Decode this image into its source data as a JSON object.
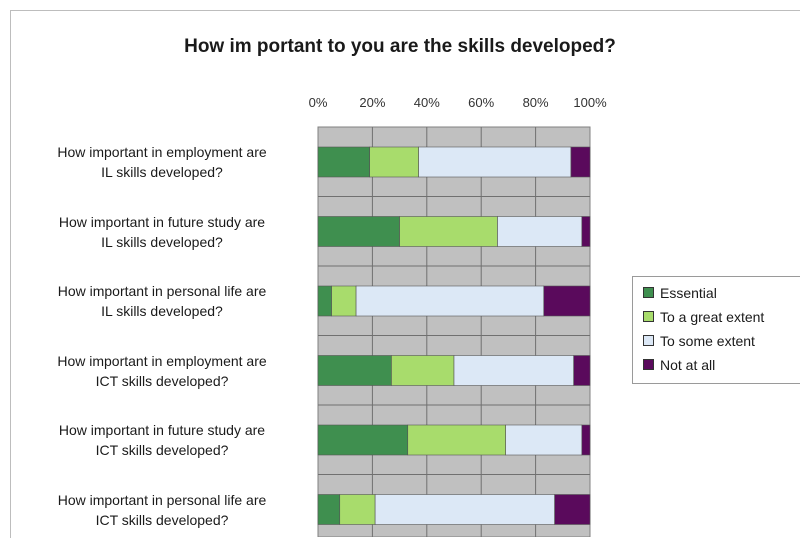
{
  "chart_data": {
    "type": "bar",
    "orientation": "horizontal",
    "stacked": true,
    "title": "How im portant to you are the skills developed?",
    "xlabel": "",
    "ylabel": "",
    "xlim": [
      0,
      100
    ],
    "x_ticks": [
      "0%",
      "20%",
      "40%",
      "60%",
      "80%",
      "100%"
    ],
    "grid": true,
    "plot_background": "#c0c0c0",
    "legend_position": "right",
    "categories": [
      "How important in employment are IL skills developed?",
      "How important in future study are IL skills developed?",
      "How important in personal life are IL skills developed?",
      "How important in employment are ICT skills developed?",
      "How important in future study are ICT skills developed?",
      "How important in personal life are ICT skills developed?"
    ],
    "category_lines": [
      [
        "How important in employment are",
        "IL skills developed?"
      ],
      [
        "How important in future study are",
        "IL skills developed?"
      ],
      [
        "How important in personal life are",
        "IL skills developed?"
      ],
      [
        "How important in employment are",
        "ICT skills developed?"
      ],
      [
        "How important in future study are",
        "ICT skills developed?"
      ],
      [
        "How important in personal life are",
        "ICT skills developed?"
      ]
    ],
    "series": [
      {
        "name": "Essential",
        "color": "#3f8f4f",
        "values": [
          19,
          30,
          5,
          27,
          33,
          8
        ]
      },
      {
        "name": "To a great extent",
        "color": "#a8dc6c",
        "values": [
          18,
          36,
          9,
          23,
          36,
          13
        ]
      },
      {
        "name": "To some extent",
        "color": "#dce8f6",
        "values": [
          56,
          31,
          69,
          44,
          28,
          66
        ]
      },
      {
        "name": "Not at all",
        "color": "#5a0a5c",
        "values": [
          7,
          3,
          17,
          6,
          3,
          13
        ]
      }
    ]
  }
}
